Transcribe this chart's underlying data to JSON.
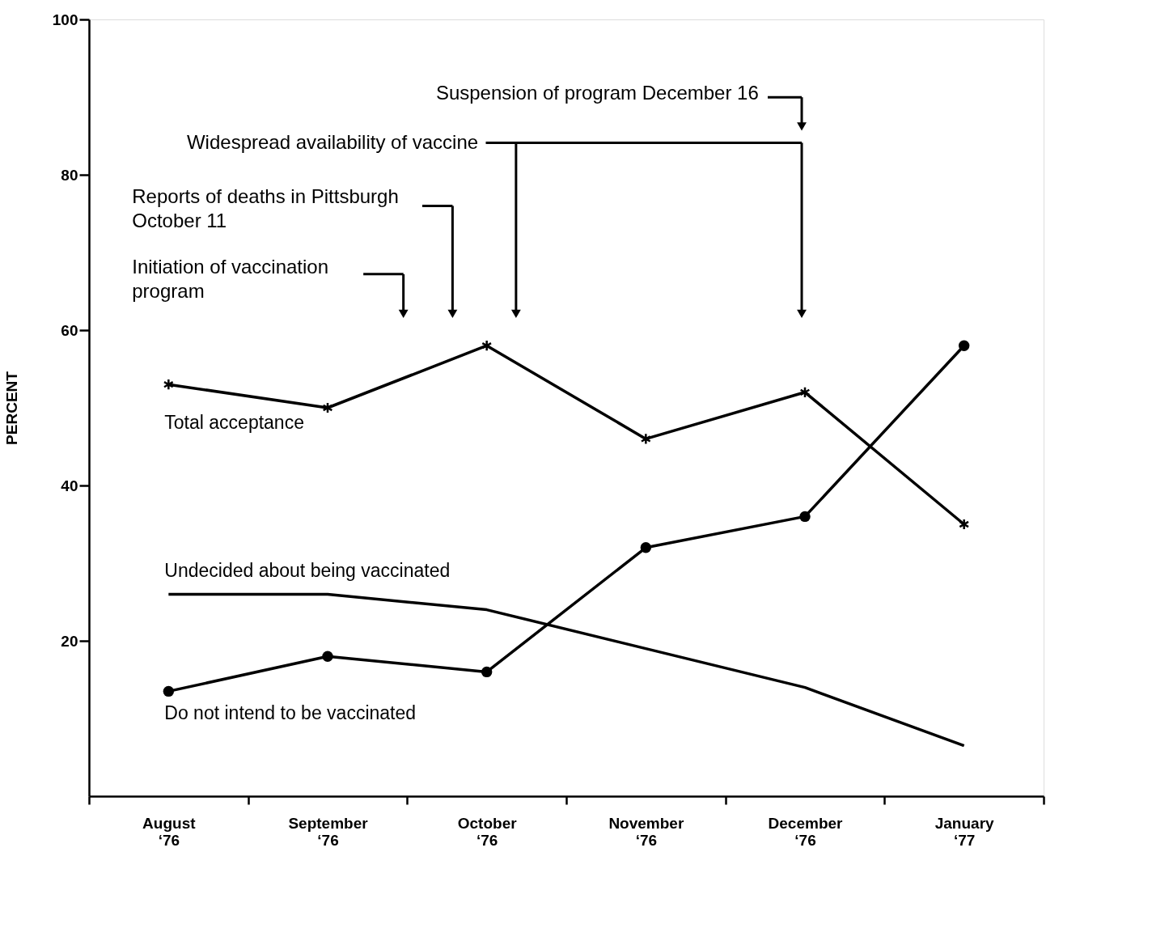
{
  "chart_data": {
    "type": "line",
    "ylabel": "PERCENT",
    "categories": [
      "August\n‘76",
      "September\n‘76",
      "October\n‘76",
      "November\n‘76",
      "December\n‘76",
      "January\n‘77"
    ],
    "series": [
      {
        "name": "Total acceptance",
        "color": "#000000",
        "marker": "cross",
        "values": [
          53,
          50,
          58,
          46,
          52,
          35
        ]
      },
      {
        "name": "Undecided about being vaccinated",
        "color": "#000000",
        "marker": "none",
        "values": [
          26,
          26,
          24,
          19,
          14,
          6.5
        ]
      },
      {
        "name": "Do not intend to be vaccinated",
        "color": "#000000",
        "marker": "circle",
        "values": [
          13.5,
          18,
          16,
          32,
          36,
          58
        ]
      }
    ],
    "ylim": [
      0,
      100
    ],
    "yticks": [
      20,
      40,
      60,
      80,
      100
    ],
    "grid": false,
    "line_style": "solid",
    "annotations": [
      "Suspension of program December 16",
      "Widespread availability of vaccine",
      "Reports of deaths in Pittsburgh\nOctober 11",
      "Initiation of vaccination\nprogram"
    ]
  }
}
